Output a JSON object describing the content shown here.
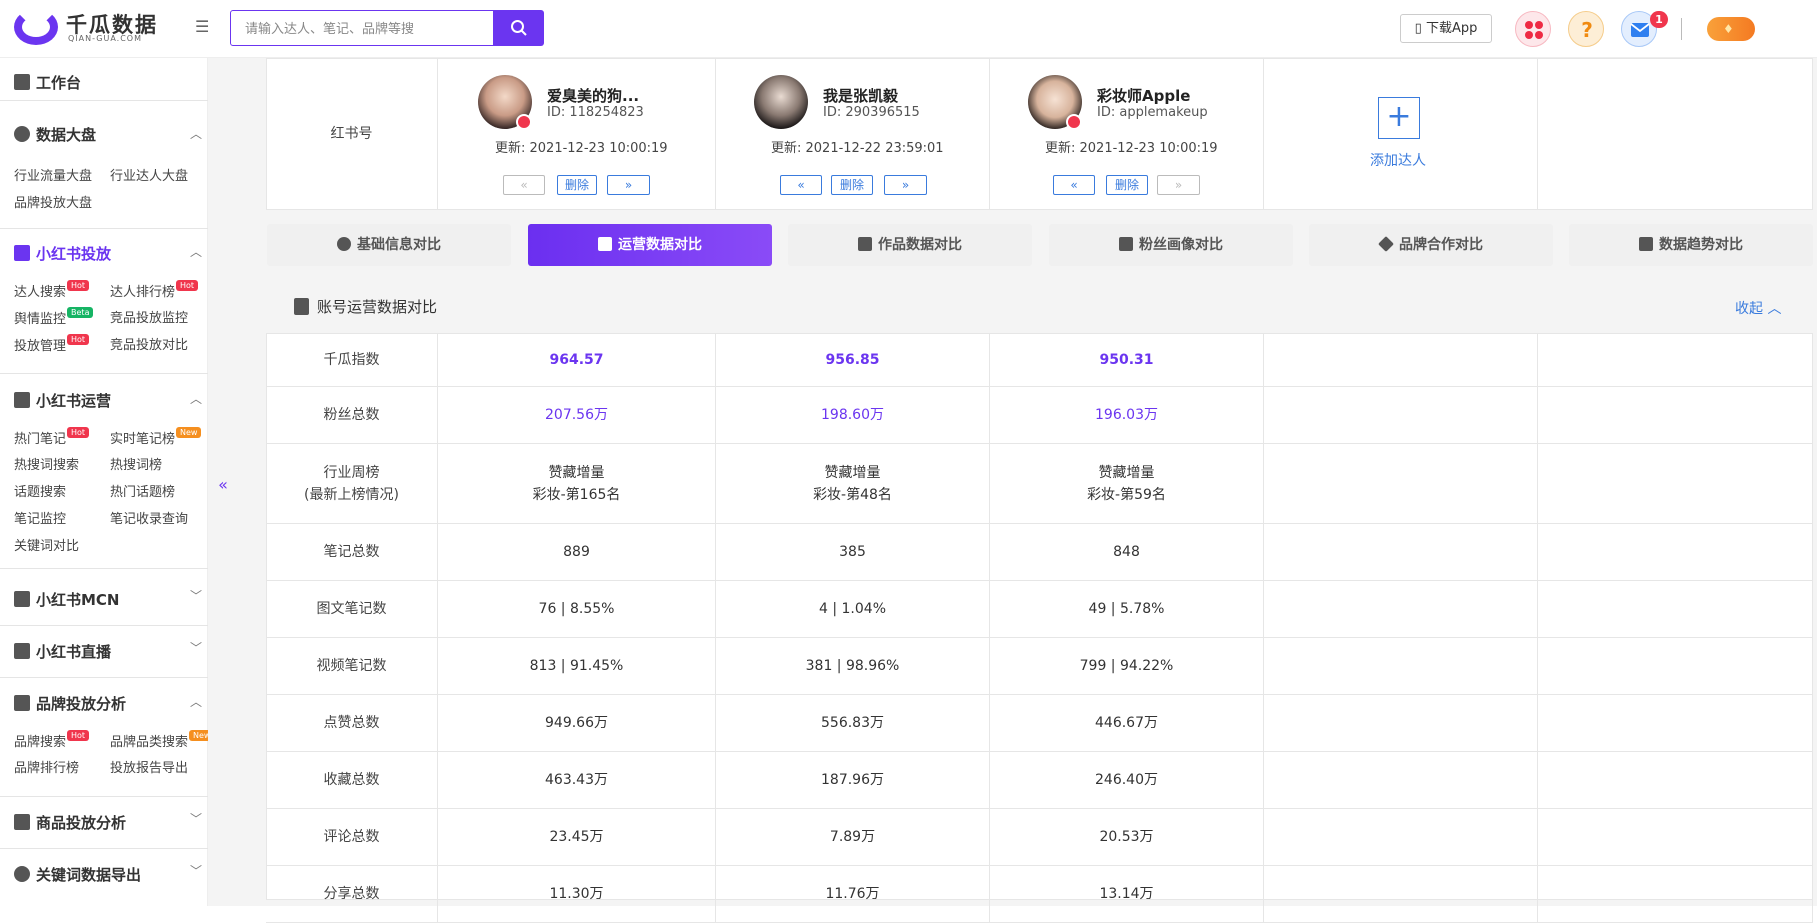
{
  "header": {
    "brand": "千瓜数据",
    "brand_sub": "QIAN-GUA.COM",
    "search_placeholder": "请输入达人、笔记、品牌等搜",
    "download_app": "下载App",
    "message_count": "1"
  },
  "sidebar": {
    "workbench": "工作台",
    "sections": [
      {
        "title": "数据大盘",
        "items": [
          "行业流量大盘",
          "行业达人大盘",
          "品牌投放大盘"
        ]
      },
      {
        "title": "小红书投放",
        "items": [
          "达人搜索",
          "达人排行榜",
          "舆情监控",
          "竞品投放监控",
          "投放管理",
          "竞品投放对比"
        ]
      },
      {
        "title": "小红书运营",
        "items": [
          "热门笔记",
          "实时笔记榜",
          "热搜词搜索",
          "热搜词榜",
          "话题搜索",
          "热门话题榜",
          "笔记监控",
          "笔记收录查询",
          "关键词对比"
        ]
      },
      {
        "title": "小红书MCN"
      },
      {
        "title": "小红书直播"
      },
      {
        "title": "品牌投放分析",
        "items": [
          "品牌搜索",
          "品牌品类搜索",
          "品牌排行榜",
          "投放报告导出"
        ]
      },
      {
        "title": "商品投放分析"
      },
      {
        "title": "关键词数据导出"
      }
    ],
    "tags": {
      "hot": "Hot",
      "new": "New",
      "beta": "Beta"
    }
  },
  "compare": {
    "row_label": "红书号",
    "kols": [
      {
        "name": "爱臭美的狗...",
        "id": "ID:  118254823",
        "updated": "更新:  2021-12-23 10:00:19"
      },
      {
        "name": "我是张凯毅",
        "id": "ID:  290396515",
        "updated": "更新:  2021-12-22 23:59:01"
      },
      {
        "name": "彩妆师Apple",
        "id": "ID:  applemakeup",
        "updated": "更新:  2021-12-23 10:00:19"
      }
    ],
    "delete_label": "删除",
    "add_label": "添加达人"
  },
  "tabs": [
    "基础信息对比",
    "运营数据对比",
    "作品数据对比",
    "粉丝画像对比",
    "品牌合作对比",
    "数据趋势对比"
  ],
  "section": {
    "title": "账号运营数据对比",
    "collapse": "收起"
  },
  "rows": [
    {
      "label": "千瓜指数",
      "values": [
        "964.57",
        "956.85",
        "950.31"
      ]
    },
    {
      "label": "粉丝总数",
      "values": [
        "207.56万",
        "198.60万",
        "196.03万"
      ]
    },
    {
      "label": "行业周榜",
      "label2": "(最新上榜情况)",
      "values": [
        "赞藏增量",
        "赞藏增量",
        "赞藏增量"
      ],
      "values2": [
        "彩妆-第165名",
        "彩妆-第48名",
        "彩妆-第59名"
      ]
    },
    {
      "label": "笔记总数",
      "values": [
        "889",
        "385",
        "848"
      ]
    },
    {
      "label": "图文笔记数",
      "values": [
        "76 | 8.55%",
        "4 | 1.04%",
        "49 | 5.78%"
      ]
    },
    {
      "label": "视频笔记数",
      "values": [
        "813 | 91.45%",
        "381 | 98.96%",
        "799 | 94.22%"
      ]
    },
    {
      "label": "点赞总数",
      "values": [
        "949.66万",
        "556.83万",
        "446.67万"
      ]
    },
    {
      "label": "收藏总数",
      "values": [
        "463.43万",
        "187.96万",
        "246.40万"
      ]
    },
    {
      "label": "评论总数",
      "values": [
        "23.45万",
        "7.89万",
        "20.53万"
      ]
    },
    {
      "label": "分享总数",
      "values": [
        "11.30万",
        "11.76万",
        "13.14万"
      ]
    }
  ]
}
